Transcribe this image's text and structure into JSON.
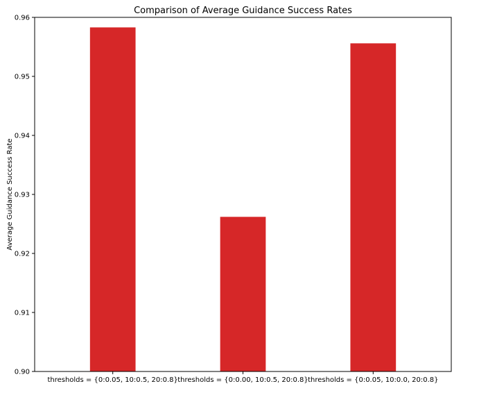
{
  "chart_data": {
    "type": "bar",
    "title": "Comparison of Average Guidance Success Rates",
    "xlabel": "",
    "ylabel": "Average Guidance Success Rate",
    "categories": [
      "thresholds = {0:0.05, 10:0.5, 20:0.8}",
      "thresholds = {0:0.00, 10:0.5, 20:0.8}",
      "thresholds = {0:0.05, 10:0.0, 20:0.8}"
    ],
    "values": [
      0.9583,
      0.9262,
      0.9556
    ],
    "ylim": [
      0.9,
      0.96
    ],
    "yticks": [
      "0.90",
      "0.91",
      "0.92",
      "0.93",
      "0.94",
      "0.95",
      "0.96"
    ],
    "bar_color": "#d62728",
    "grid": false,
    "legend": "none"
  }
}
